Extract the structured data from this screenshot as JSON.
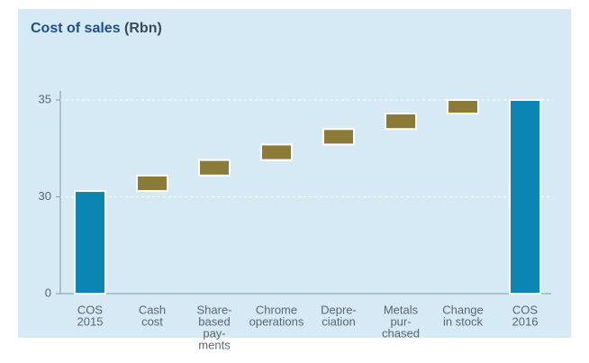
{
  "chart_data": {
    "type": "waterfall",
    "title": "Cost of sales",
    "unit": "(Rbn)",
    "categories": [
      [
        "COS",
        "2015"
      ],
      [
        "Cash",
        "cost"
      ],
      [
        "Share-",
        "based",
        "pay-",
        "ments"
      ],
      [
        "Chrome",
        "operations"
      ],
      [
        "Depre-",
        "ciation"
      ],
      [
        "Metals",
        "pur-",
        "chased"
      ],
      [
        "Change",
        "in stock"
      ],
      [
        "COS",
        "2016"
      ]
    ],
    "values": [
      30.3,
      0.8,
      0.8,
      0.8,
      0.8,
      0.8,
      0.7,
      35.0
    ],
    "measure": [
      "total",
      "relative",
      "relative",
      "relative",
      "relative",
      "relative",
      "relative",
      "total"
    ],
    "colors": {
      "total": "#0b86b3",
      "relative": "#8c7a38"
    },
    "ylim": [
      0,
      35
    ],
    "yticks": [
      0,
      30,
      35
    ],
    "axis_break": true,
    "grid": true
  }
}
